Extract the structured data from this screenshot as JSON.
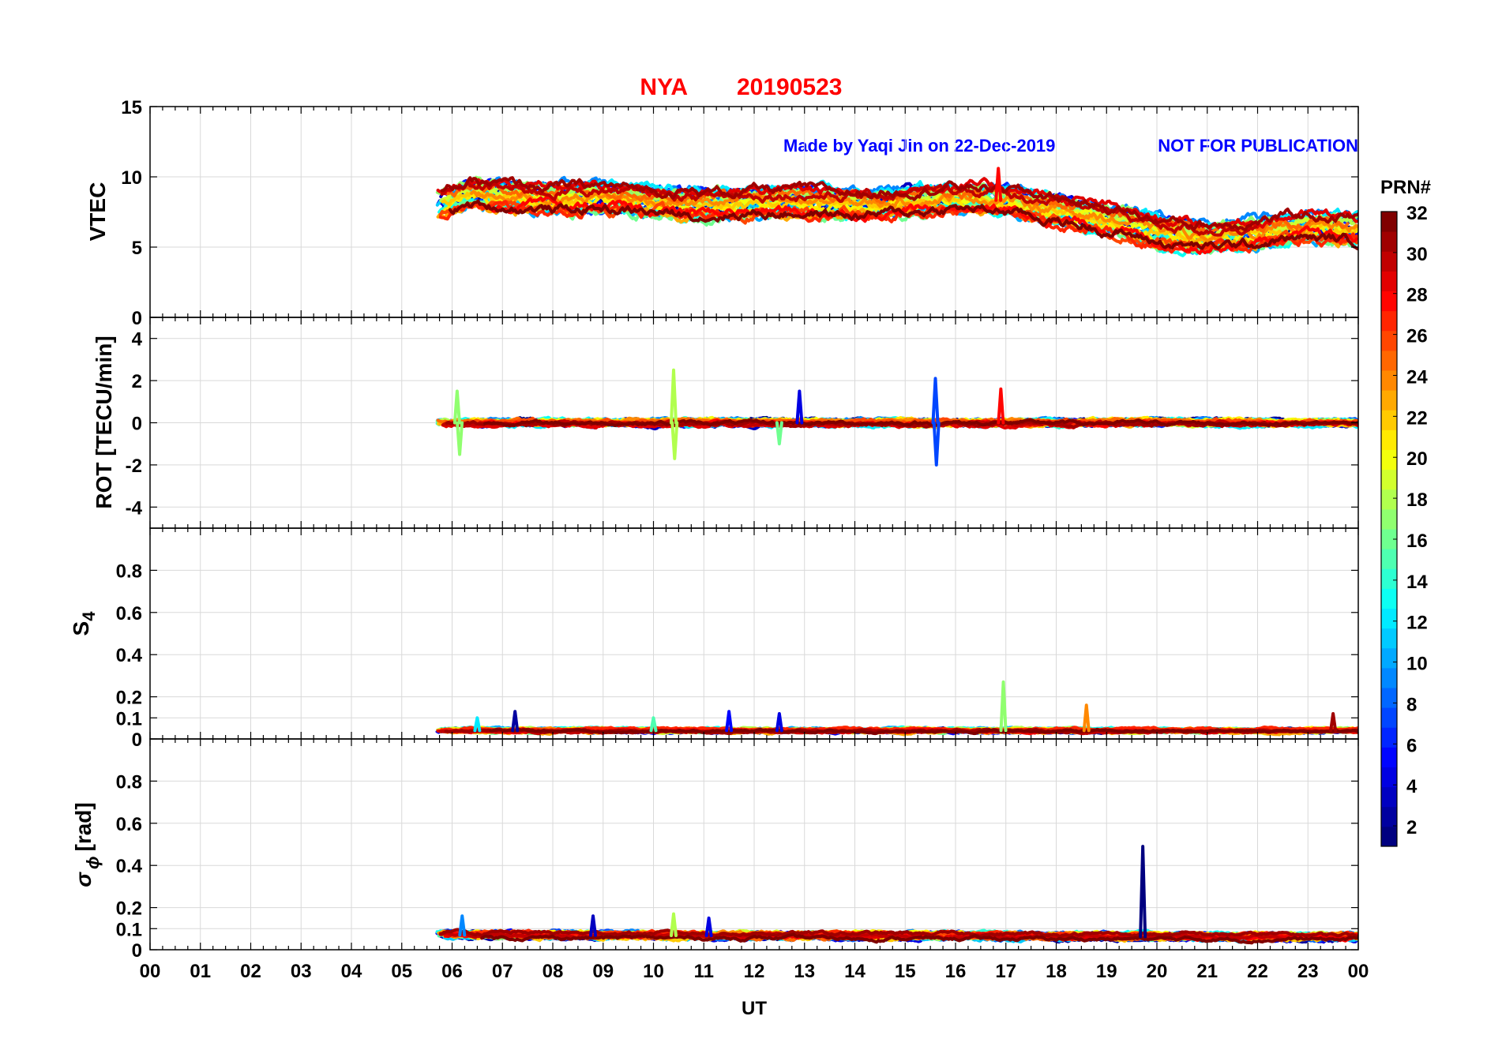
{
  "chart_data": {
    "type": "line",
    "title": {
      "station": "NYA",
      "date": "20190523",
      "color": "#ff0000"
    },
    "annotations": [
      {
        "text": "Made by Yaqi Jin on 22-Dec-2019",
        "color": "#0000ff"
      },
      {
        "text": "NOT FOR PUBLICATION",
        "color": "#0000ff"
      }
    ],
    "xlabel": "UT",
    "x_ticks": [
      "00",
      "01",
      "02",
      "03",
      "04",
      "05",
      "06",
      "07",
      "08",
      "09",
      "10",
      "11",
      "12",
      "13",
      "14",
      "15",
      "16",
      "17",
      "18",
      "19",
      "20",
      "21",
      "22",
      "23",
      "00"
    ],
    "xlim_hours": [
      0,
      24
    ],
    "data_start_hour": 5.7,
    "colorbar": {
      "title": "PRN#",
      "range": [
        1,
        32
      ],
      "ticks": [
        "2",
        "4",
        "6",
        "8",
        "10",
        "12",
        "14",
        "16",
        "18",
        "20",
        "22",
        "24",
        "26",
        "28",
        "30",
        "32"
      ],
      "colormap": "jet"
    },
    "panels": [
      {
        "id": "vtec",
        "ylabel": "VTEC",
        "ylim": [
          0,
          15
        ],
        "yticks": [
          "0",
          "5",
          "10",
          "15"
        ],
        "ytick_values": [
          0,
          5,
          10,
          15
        ],
        "envelope": {
          "x_hours": [
            5.7,
            6.3,
            7.0,
            8.0,
            9.0,
            10.0,
            11.0,
            12.0,
            13.0,
            14.0,
            15.0,
            16.0,
            17.0,
            18.0,
            19.0,
            20.0,
            21.0,
            22.0,
            22.6,
            23.0,
            24.0
          ],
          "mean": [
            8.0,
            8.7,
            8.6,
            8.4,
            8.5,
            8.2,
            8.0,
            8.2,
            8.2,
            8.0,
            8.2,
            8.5,
            8.3,
            7.6,
            7.0,
            6.1,
            5.7,
            6.0,
            6.3,
            6.4,
            6.2
          ],
          "spread": 1.2
        },
        "spikes": [
          {
            "prn": 28,
            "x_hour": 16.85,
            "value": 10.6
          }
        ]
      },
      {
        "id": "rot",
        "ylabel": "ROT [TECU/min]",
        "ylim": [
          -5,
          5
        ],
        "yticks": [
          "-4",
          "-2",
          "0",
          "2",
          "4"
        ],
        "ytick_values": [
          -4,
          -2,
          0,
          2,
          4
        ],
        "envelope": {
          "x_hours": [
            5.7,
            24.0
          ],
          "mean": [
            0.0,
            0.0
          ],
          "spread": 0.3
        },
        "spikes": [
          {
            "prn": 18,
            "x_hour": 10.4,
            "value": 2.5
          },
          {
            "prn": 18,
            "x_hour": 10.42,
            "value": -1.7
          },
          {
            "prn": 7,
            "x_hour": 15.6,
            "value": 2.1
          },
          {
            "prn": 7,
            "x_hour": 15.62,
            "value": -2.0
          },
          {
            "prn": 28,
            "x_hour": 16.9,
            "value": 1.6
          },
          {
            "prn": 17,
            "x_hour": 6.1,
            "value": 1.5
          },
          {
            "prn": 17,
            "x_hour": 6.15,
            "value": -1.5
          },
          {
            "prn": 4,
            "x_hour": 12.9,
            "value": 1.5
          },
          {
            "prn": 16,
            "x_hour": 12.5,
            "value": -1.0
          }
        ]
      },
      {
        "id": "s4",
        "ylabel": "S4",
        "ylim": [
          0,
          1
        ],
        "yticks": [
          "0",
          "0.1",
          "0.2",
          "0.4",
          "0.6",
          "0.8"
        ],
        "ytick_values": [
          0,
          0.1,
          0.2,
          0.4,
          0.6,
          0.8
        ],
        "envelope": {
          "x_hours": [
            5.7,
            24.0
          ],
          "mean": [
            0.04,
            0.04
          ],
          "spread": 0.02
        },
        "spikes": [
          {
            "prn": 17,
            "x_hour": 16.95,
            "value": 0.27
          },
          {
            "prn": 24,
            "x_hour": 18.6,
            "value": 0.16
          },
          {
            "prn": 5,
            "x_hour": 11.5,
            "value": 0.13
          },
          {
            "prn": 2,
            "x_hour": 7.25,
            "value": 0.13
          },
          {
            "prn": 4,
            "x_hour": 12.5,
            "value": 0.12
          },
          {
            "prn": 31,
            "x_hour": 23.5,
            "value": 0.12
          },
          {
            "prn": 12,
            "x_hour": 6.5,
            "value": 0.1
          },
          {
            "prn": 15,
            "x_hour": 10.0,
            "value": 0.1
          }
        ]
      },
      {
        "id": "sigma_phi",
        "ylabel": "σ",
        "ylabel_sub": "ϕ",
        "ylabel_unit": "[rad]",
        "ylim": [
          0,
          1
        ],
        "yticks": [
          "0",
          "0.1",
          "0.2",
          "0.4",
          "0.6",
          "0.8"
        ],
        "ytick_values": [
          0,
          0.1,
          0.2,
          0.4,
          0.6,
          0.8
        ],
        "envelope": {
          "x_hours": [
            5.7,
            24.0
          ],
          "mean": [
            0.07,
            0.06
          ],
          "spread": 0.03
        },
        "spikes": [
          {
            "prn": 1,
            "x_hour": 19.72,
            "value": 0.49
          },
          {
            "prn": 18,
            "x_hour": 10.4,
            "value": 0.17
          },
          {
            "prn": 9,
            "x_hour": 6.2,
            "value": 0.16
          },
          {
            "prn": 3,
            "x_hour": 8.8,
            "value": 0.16
          },
          {
            "prn": 4,
            "x_hour": 11.1,
            "value": 0.15
          }
        ]
      }
    ]
  }
}
